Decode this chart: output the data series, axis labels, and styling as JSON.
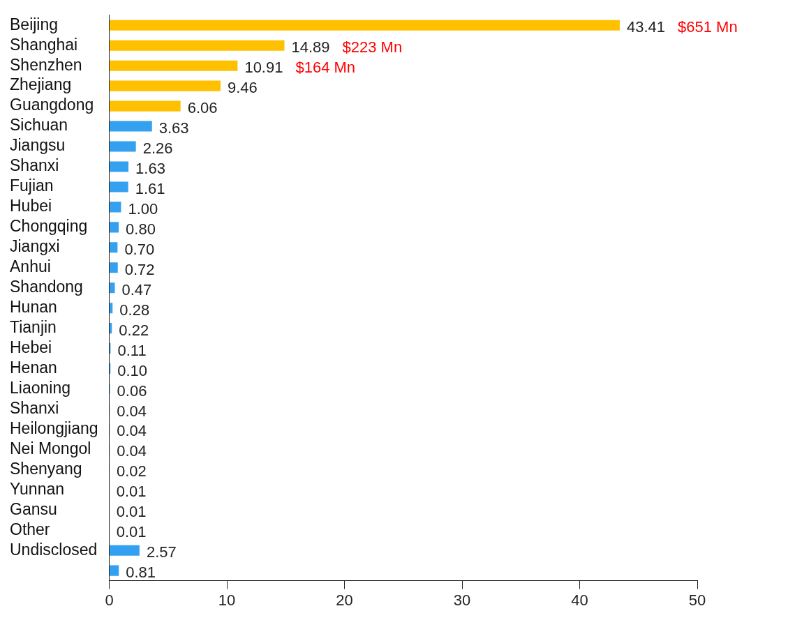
{
  "chart_data": {
    "type": "bar",
    "orientation": "horizontal",
    "categories": [
      "Beijing",
      "Shanghai",
      "Shenzhen",
      "Zhejiang",
      "Guangdong",
      "Sichuan",
      "Jiangsu",
      "Shanxi",
      "Fujian",
      "Hubei",
      "Chongqing",
      "Jiangxi",
      "Anhui",
      "Shandong",
      "Hunan",
      "Tianjin",
      "Hebei",
      "Henan",
      "Liaoning",
      "Shanxi",
      "Heilongjiang",
      "Nei Mongol",
      "Shenyang",
      "Yunnan",
      "Gansu",
      "Other",
      "Undisclosed",
      null
    ],
    "values": [
      43.41,
      14.89,
      10.91,
      9.46,
      6.06,
      3.63,
      2.26,
      1.63,
      1.61,
      1.0,
      0.8,
      0.7,
      0.72,
      0.47,
      0.28,
      0.22,
      0.11,
      0.1,
      0.06,
      0.04,
      0.04,
      0.04,
      0.02,
      0.01,
      0.01,
      0.01,
      2.57,
      0.81
    ],
    "value_labels": [
      "43.41",
      "14.89",
      "10.91",
      "9.46",
      "6.06",
      "3.63",
      "2.26",
      "1.63",
      "1.61",
      "1.00",
      "0.80",
      "0.70",
      "0.72",
      "0.47",
      "0.28",
      "0.22",
      "0.11",
      "0.10",
      "0.06",
      "0.04",
      "0.04",
      "0.04",
      "0.02",
      "0.01",
      "0.01",
      "0.01",
      "2.57",
      "0.81"
    ],
    "colors": [
      "#ffc000",
      "#ffc000",
      "#ffc000",
      "#ffc000",
      "#ffc000",
      "#33a0f0",
      "#33a0f0",
      "#33a0f0",
      "#33a0f0",
      "#33a0f0",
      "#33a0f0",
      "#33a0f0",
      "#33a0f0",
      "#33a0f0",
      "#33a0f0",
      "#33a0f0",
      "#33a0f0",
      "#33a0f0",
      "#33a0f0",
      "#33a0f0",
      "#33a0f0",
      "#33a0f0",
      "#33a0f0",
      "#33a0f0",
      "#33a0f0",
      "#33a0f0",
      "#33a0f0",
      "#33a0f0"
    ],
    "xlim": [
      0,
      50
    ],
    "xticks": [
      0,
      10,
      20,
      30,
      40,
      50
    ],
    "grid": false,
    "legend": false,
    "annotations": [
      "$651 Mn",
      "$223 Mn",
      "$164 Mn"
    ]
  }
}
